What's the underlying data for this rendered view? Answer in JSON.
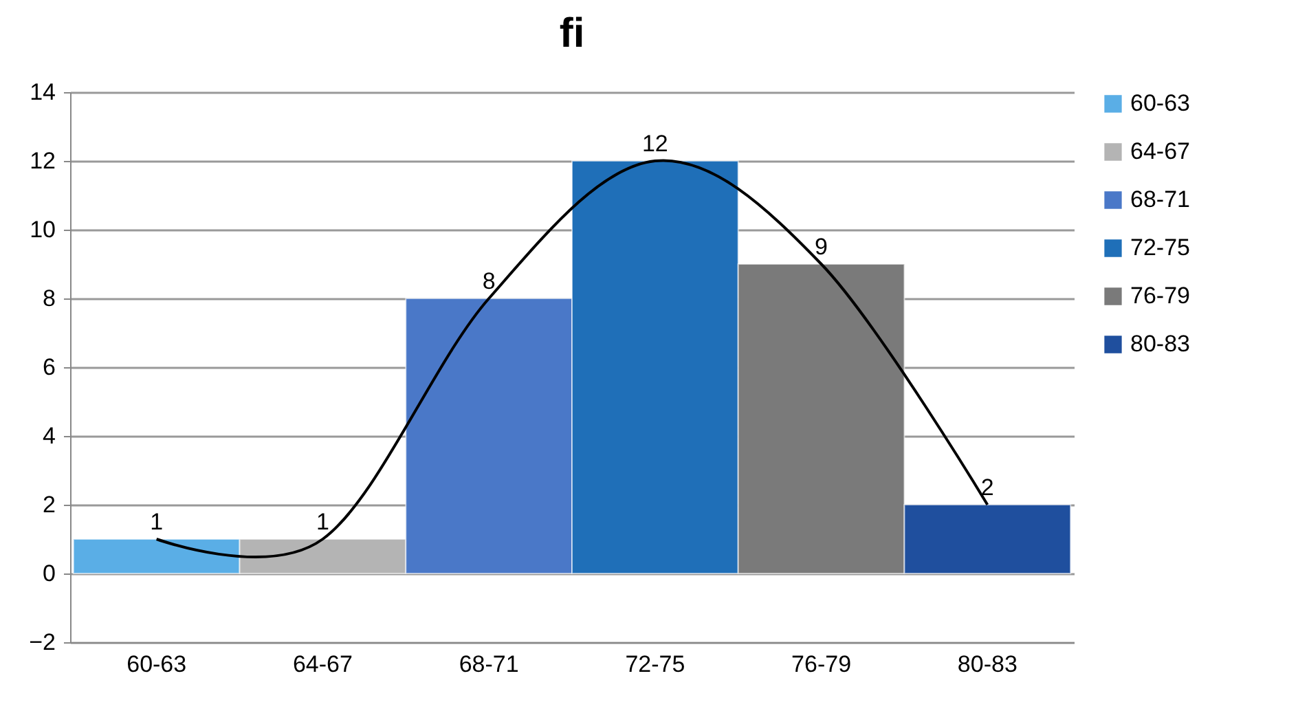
{
  "chart_data": {
    "type": "bar",
    "title": "fi",
    "categories": [
      "60-63",
      "64-67",
      "68-71",
      "72-75",
      "76-79",
      "80-83"
    ],
    "series": [
      {
        "name": "60-63",
        "color": "#5aaee6",
        "values": [
          1,
          null,
          null,
          null,
          null,
          null
        ],
        "value_labels": [
          "1",
          null,
          null,
          null,
          null,
          null
        ]
      },
      {
        "name": "64-67",
        "color": "#b4b4b4",
        "values": [
          null,
          1,
          null,
          null,
          null,
          null
        ],
        "value_labels": [
          null,
          "1",
          null,
          null,
          null,
          null
        ]
      },
      {
        "name": "68-71",
        "color": "#4a78c8",
        "values": [
          null,
          null,
          8,
          null,
          null,
          null
        ],
        "value_labels": [
          null,
          null,
          "8",
          null,
          null,
          null
        ]
      },
      {
        "name": "72-75",
        "color": "#1f6fb8",
        "values": [
          null,
          null,
          null,
          12,
          null,
          null
        ],
        "value_labels": [
          null,
          null,
          null,
          "12",
          null,
          null
        ]
      },
      {
        "name": "76-79",
        "color": "#7a7a7a",
        "values": [
          null,
          null,
          null,
          null,
          9,
          null
        ],
        "value_labels": [
          null,
          null,
          null,
          null,
          "9",
          null
        ]
      },
      {
        "name": "80-83",
        "color": "#1f4f9e",
        "values": [
          null,
          null,
          null,
          null,
          null,
          2
        ],
        "value_labels": [
          null,
          null,
          null,
          null,
          null,
          "2"
        ]
      },
      {
        "type": "line",
        "color": "#000000",
        "values": [
          1,
          1,
          8,
          12,
          9,
          2
        ]
      }
    ],
    "ylim": [
      -2,
      14
    ],
    "yticks": [
      -2,
      0,
      2,
      4,
      6,
      8,
      10,
      12,
      14
    ],
    "grid": "y",
    "legend": "right"
  }
}
